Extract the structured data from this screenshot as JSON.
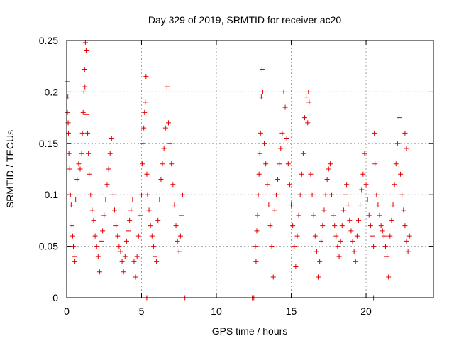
{
  "chart_data": {
    "type": "scatter",
    "title": "Day 329 of 2019, SRMTID for receiver ac20",
    "xlabel": "GPS time / hours",
    "ylabel": "SRMTID / TECUs",
    "xlim": [
      0,
      24.5
    ],
    "ylim": [
      0,
      0.25
    ],
    "x_ticks": [
      0,
      5,
      10,
      15,
      20
    ],
    "y_ticks": [
      0,
      0.05,
      0.1,
      0.15,
      0.2,
      0.25
    ],
    "x_tick_labels": [
      "0",
      "5",
      "10",
      "15",
      "20"
    ],
    "y_tick_labels": [
      "0",
      "0.05",
      "0.1",
      "0.15",
      "0.2",
      "0.25"
    ],
    "grid": true,
    "marker": "plus",
    "color": "#e00000",
    "series": [
      {
        "name": "SRMTID",
        "points": [
          [
            0.02,
            0.21
          ],
          [
            0.05,
            0.18
          ],
          [
            0.08,
            0.195
          ],
          [
            0.1,
            0.17
          ],
          [
            0.12,
            0.16
          ],
          [
            0.15,
            0.14
          ],
          [
            0.2,
            0.125
          ],
          [
            0.25,
            0.1
          ],
          [
            0.3,
            0.09
          ],
          [
            0.35,
            0.07
          ],
          [
            0.4,
            0.06
          ],
          [
            0.45,
            0.05
          ],
          [
            0.5,
            0.04
          ],
          [
            0.55,
            0.035
          ],
          [
            0.6,
            0.095
          ],
          [
            0.7,
            0.115
          ],
          [
            0.8,
            0.13
          ],
          [
            0.9,
            0.125
          ],
          [
            1.0,
            0.14
          ],
          [
            1.05,
            0.16
          ],
          [
            1.1,
            0.18
          ],
          [
            1.15,
            0.2
          ],
          [
            1.2,
            0.222
          ],
          [
            1.22,
            0.205
          ],
          [
            1.25,
            0.248
          ],
          [
            1.3,
            0.24
          ],
          [
            1.35,
            0.178
          ],
          [
            1.4,
            0.16
          ],
          [
            1.45,
            0.14
          ],
          [
            1.5,
            0.12
          ],
          [
            1.6,
            0.1
          ],
          [
            1.7,
            0.085
          ],
          [
            1.8,
            0.075
          ],
          [
            1.9,
            0.06
          ],
          [
            2.0,
            0.05
          ],
          [
            2.1,
            0.04
          ],
          [
            2.2,
            0.025
          ],
          [
            2.3,
            0.055
          ],
          [
            2.4,
            0.065
          ],
          [
            2.5,
            0.08
          ],
          [
            2.6,
            0.095
          ],
          [
            2.7,
            0.11
          ],
          [
            2.8,
            0.125
          ],
          [
            2.9,
            0.14
          ],
          [
            3.0,
            0.155
          ],
          [
            3.1,
            0.1
          ],
          [
            3.2,
            0.085
          ],
          [
            3.3,
            0.07
          ],
          [
            3.4,
            0.06
          ],
          [
            3.5,
            0.05
          ],
          [
            3.6,
            0.045
          ],
          [
            3.7,
            0.035
          ],
          [
            3.8,
            0.025
          ],
          [
            3.9,
            0.04
          ],
          [
            4.0,
            0.055
          ],
          [
            4.1,
            0.065
          ],
          [
            4.2,
            0.075
          ],
          [
            4.3,
            0.085
          ],
          [
            4.4,
            0.095
          ],
          [
            4.5,
            0.035
          ],
          [
            4.6,
            0.02
          ],
          [
            4.7,
            0.04
          ],
          [
            4.8,
            0.06
          ],
          [
            4.9,
            0.08
          ],
          [
            5.0,
            0.1
          ],
          [
            5.05,
            0.13
          ],
          [
            5.1,
            0.15
          ],
          [
            5.15,
            0.165
          ],
          [
            5.2,
            0.18
          ],
          [
            5.25,
            0.19
          ],
          [
            5.3,
            0.215
          ],
          [
            5.35,
            0.12
          ],
          [
            5.4,
            0.1
          ],
          [
            5.5,
            0.085
          ],
          [
            5.6,
            0.07
          ],
          [
            5.7,
            0.06
          ],
          [
            5.8,
            0.05
          ],
          [
            5.9,
            0.04
          ],
          [
            6.0,
            0.035
          ],
          [
            6.1,
            0.075
          ],
          [
            6.2,
            0.095
          ],
          [
            6.3,
            0.115
          ],
          [
            6.4,
            0.13
          ],
          [
            6.5,
            0.145
          ],
          [
            6.6,
            0.165
          ],
          [
            6.7,
            0.205
          ],
          [
            6.8,
            0.17
          ],
          [
            6.9,
            0.15
          ],
          [
            7.0,
            0.13
          ],
          [
            7.1,
            0.11
          ],
          [
            7.2,
            0.09
          ],
          [
            7.3,
            0.07
          ],
          [
            7.4,
            0.055
          ],
          [
            7.5,
            0.045
          ],
          [
            7.6,
            0.06
          ],
          [
            7.7,
            0.08
          ],
          [
            7.75,
            0.1
          ],
          [
            12.6,
            0.05
          ],
          [
            12.65,
            0.035
          ],
          [
            12.7,
            0.065
          ],
          [
            12.75,
            0.08
          ],
          [
            12.8,
            0.1
          ],
          [
            12.85,
            0.12
          ],
          [
            12.9,
            0.14
          ],
          [
            12.95,
            0.16
          ],
          [
            13.0,
            0.195
          ],
          [
            13.05,
            0.222
          ],
          [
            13.1,
            0.2
          ],
          [
            13.2,
            0.15
          ],
          [
            13.3,
            0.13
          ],
          [
            13.4,
            0.11
          ],
          [
            13.5,
            0.09
          ],
          [
            13.6,
            0.07
          ],
          [
            13.7,
            0.05
          ],
          [
            13.8,
            0.02
          ],
          [
            13.9,
            0.085
          ],
          [
            14.0,
            0.1
          ],
          [
            14.1,
            0.115
          ],
          [
            14.2,
            0.13
          ],
          [
            14.3,
            0.145
          ],
          [
            14.4,
            0.16
          ],
          [
            14.5,
            0.2
          ],
          [
            14.6,
            0.185
          ],
          [
            14.7,
            0.155
          ],
          [
            14.8,
            0.13
          ],
          [
            14.9,
            0.11
          ],
          [
            15.0,
            0.09
          ],
          [
            15.1,
            0.07
          ],
          [
            15.2,
            0.05
          ],
          [
            15.3,
            0.03
          ],
          [
            15.4,
            0.06
          ],
          [
            15.5,
            0.08
          ],
          [
            15.6,
            0.1
          ],
          [
            15.7,
            0.12
          ],
          [
            15.8,
            0.14
          ],
          [
            15.9,
            0.175
          ],
          [
            16.0,
            0.195
          ],
          [
            16.1,
            0.17
          ],
          [
            16.15,
            0.2
          ],
          [
            16.2,
            0.19
          ],
          [
            16.3,
            0.12
          ],
          [
            16.4,
            0.1
          ],
          [
            16.5,
            0.08
          ],
          [
            16.6,
            0.06
          ],
          [
            16.7,
            0.045
          ],
          [
            16.8,
            0.02
          ],
          [
            16.9,
            0.035
          ],
          [
            17.0,
            0.055
          ],
          [
            17.1,
            0.07
          ],
          [
            17.2,
            0.085
          ],
          [
            17.3,
            0.1
          ],
          [
            17.4,
            0.115
          ],
          [
            17.5,
            0.125
          ],
          [
            17.6,
            0.13
          ],
          [
            17.7,
            0.1
          ],
          [
            17.8,
            0.08
          ],
          [
            17.9,
            0.07
          ],
          [
            18.0,
            0.06
          ],
          [
            18.1,
            0.05
          ],
          [
            18.2,
            0.04
          ],
          [
            18.3,
            0.055
          ],
          [
            18.4,
            0.07
          ],
          [
            18.5,
            0.085
          ],
          [
            18.6,
            0.1
          ],
          [
            18.7,
            0.11
          ],
          [
            18.8,
            0.09
          ],
          [
            18.9,
            0.075
          ],
          [
            19.0,
            0.065
          ],
          [
            19.1,
            0.055
          ],
          [
            19.2,
            0.045
          ],
          [
            19.3,
            0.035
          ],
          [
            19.4,
            0.06
          ],
          [
            19.5,
            0.075
          ],
          [
            19.6,
            0.09
          ],
          [
            19.7,
            0.105
          ],
          [
            19.8,
            0.12
          ],
          [
            19.9,
            0.14
          ],
          [
            20.0,
            0.11
          ],
          [
            20.1,
            0.095
          ],
          [
            20.2,
            0.08
          ],
          [
            20.3,
            0.07
          ],
          [
            20.4,
            0.06
          ],
          [
            20.5,
            0.05
          ],
          [
            20.55,
            0.16
          ],
          [
            20.6,
            0.13
          ],
          [
            20.7,
            0.1
          ],
          [
            20.8,
            0.09
          ],
          [
            20.9,
            0.08
          ],
          [
            21.0,
            0.07
          ],
          [
            21.1,
            0.065
          ],
          [
            21.2,
            0.06
          ],
          [
            21.3,
            0.05
          ],
          [
            21.4,
            0.04
          ],
          [
            21.5,
            0.02
          ],
          [
            21.6,
            0.06
          ],
          [
            21.7,
            0.075
          ],
          [
            21.8,
            0.09
          ],
          [
            21.9,
            0.11
          ],
          [
            22.0,
            0.13
          ],
          [
            22.1,
            0.15
          ],
          [
            22.2,
            0.175
          ],
          [
            22.3,
            0.12
          ],
          [
            22.4,
            0.1
          ],
          [
            22.5,
            0.085
          ],
          [
            22.6,
            0.07
          ],
          [
            22.7,
            0.055
          ],
          [
            22.8,
            0.045
          ],
          [
            22.9,
            0.06
          ],
          [
            22.6,
            0.16
          ],
          [
            22.7,
            0.145
          ]
        ]
      }
    ],
    "zero_markers_x": [
      5.35,
      7.9,
      12.4,
      12.5,
      20.5
    ]
  }
}
